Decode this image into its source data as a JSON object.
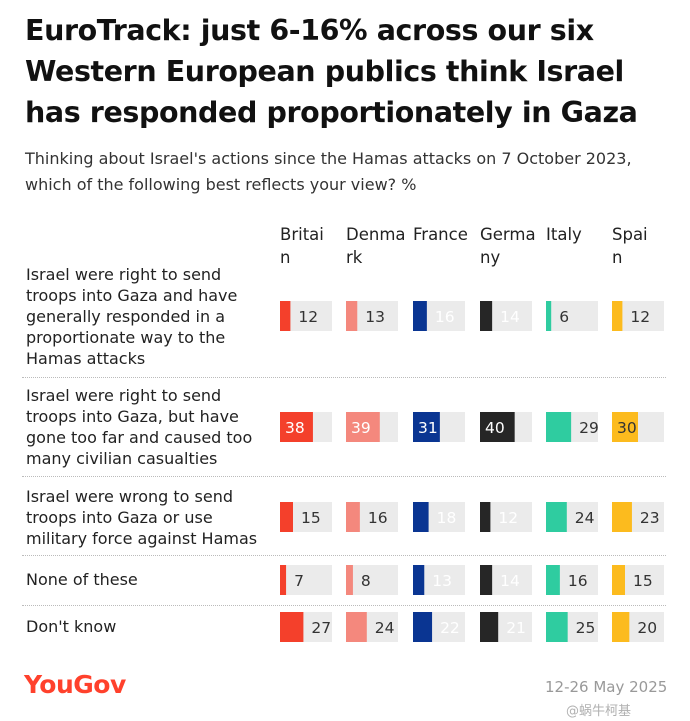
{
  "title": "EuroTrack: just 6-16% across our six Western European publics think Israel has responded proportionately in Gaza",
  "subtitle": "Thinking about Israel's actions since the Hamas attacks on 7 October 2023, which of the following best reflects your view? %",
  "logo": "YouGov",
  "date": "12-26 May 2025",
  "watermark": "@蜗牛柯基",
  "colors": {
    "Britain": "#f4402b",
    "Denmark": "#f4887d",
    "France": "#0a3592",
    "Germany": "#262626",
    "Italy": "#2fcca0",
    "Spain": "#fcbb1e",
    "track": "#ebebeb",
    "brand": "#ff412c"
  },
  "chart_data": {
    "type": "table",
    "xlim": [
      0,
      100
    ],
    "columns": [
      {
        "name": "Britain",
        "label": "Britain"
      },
      {
        "name": "Denmark",
        "label": "Denmark"
      },
      {
        "name": "France",
        "label": "France"
      },
      {
        "name": "Germany",
        "label": "Germany"
      },
      {
        "name": "Italy",
        "label": "Italy"
      },
      {
        "name": "Spain",
        "label": "Spain"
      }
    ],
    "rows": [
      {
        "label": "Israel were right to send troops into Gaza and have generally responded in a proportionate way to the Hamas attacks",
        "values": [
          12,
          13,
          16,
          14,
          6,
          12
        ]
      },
      {
        "label": "Israel were right to send troops into Gaza, but have gone too far and caused too many civilian casualties",
        "values": [
          38,
          39,
          31,
          40,
          29,
          30
        ]
      },
      {
        "label": "Israel were wrong to send troops into Gaza or use military force against Hamas",
        "values": [
          15,
          16,
          18,
          12,
          24,
          23
        ]
      },
      {
        "label": "None of these",
        "values": [
          7,
          8,
          13,
          14,
          16,
          15
        ]
      },
      {
        "label": "Don't know",
        "values": [
          27,
          24,
          22,
          21,
          25,
          20
        ]
      }
    ]
  }
}
